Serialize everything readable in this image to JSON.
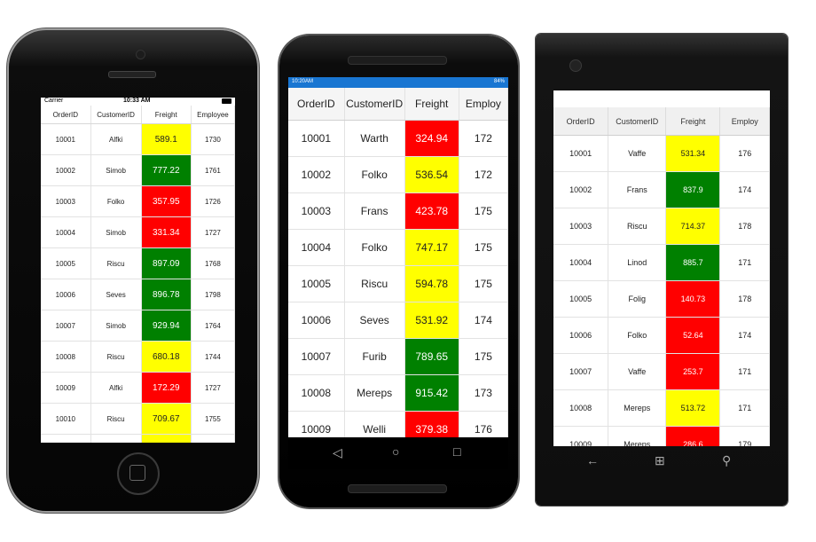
{
  "columns": [
    "OrderID",
    "CustomerID",
    "Freight",
    "Employee"
  ],
  "android_columns": [
    "OrderID",
    "CustomerID",
    "Freight",
    "Employ"
  ],
  "wp_columns": [
    "OrderID",
    "CustomerID",
    "Freight",
    "Employ"
  ],
  "ios": {
    "status": {
      "carrier": "Carrier",
      "time": "10:33 AM"
    },
    "rows": [
      {
        "order_id": "10001",
        "customer": "Alfki",
        "freight": "589.1",
        "employee": "1730",
        "color": "yellow"
      },
      {
        "order_id": "10002",
        "customer": "Simob",
        "freight": "777.22",
        "employee": "1761",
        "color": "green"
      },
      {
        "order_id": "10003",
        "customer": "Folko",
        "freight": "357.95",
        "employee": "1726",
        "color": "red"
      },
      {
        "order_id": "10004",
        "customer": "Simob",
        "freight": "331.34",
        "employee": "1727",
        "color": "red"
      },
      {
        "order_id": "10005",
        "customer": "Riscu",
        "freight": "897.09",
        "employee": "1768",
        "color": "green"
      },
      {
        "order_id": "10006",
        "customer": "Seves",
        "freight": "896.78",
        "employee": "1798",
        "color": "green"
      },
      {
        "order_id": "10007",
        "customer": "Simob",
        "freight": "929.94",
        "employee": "1764",
        "color": "green"
      },
      {
        "order_id": "10008",
        "customer": "Riscu",
        "freight": "680.18",
        "employee": "1744",
        "color": "yellow"
      },
      {
        "order_id": "10009",
        "customer": "Alfki",
        "freight": "172.29",
        "employee": "1727",
        "color": "red"
      },
      {
        "order_id": "10010",
        "customer": "Riscu",
        "freight": "709.67",
        "employee": "1755",
        "color": "yellow"
      },
      {
        "order_id": "",
        "customer": "",
        "freight": "",
        "employee": "",
        "color": "yellow"
      }
    ]
  },
  "android": {
    "status": {
      "time": "10:20AM",
      "battery": "84%"
    },
    "rows": [
      {
        "order_id": "10001",
        "customer": "Warth",
        "freight": "324.94",
        "employee": "172",
        "color": "red"
      },
      {
        "order_id": "10002",
        "customer": "Folko",
        "freight": "536.54",
        "employee": "172",
        "color": "yellow"
      },
      {
        "order_id": "10003",
        "customer": "Frans",
        "freight": "423.78",
        "employee": "175",
        "color": "red"
      },
      {
        "order_id": "10004",
        "customer": "Folko",
        "freight": "747.17",
        "employee": "175",
        "color": "yellow"
      },
      {
        "order_id": "10005",
        "customer": "Riscu",
        "freight": "594.78",
        "employee": "175",
        "color": "yellow"
      },
      {
        "order_id": "10006",
        "customer": "Seves",
        "freight": "531.92",
        "employee": "174",
        "color": "yellow"
      },
      {
        "order_id": "10007",
        "customer": "Furib",
        "freight": "789.65",
        "employee": "175",
        "color": "green"
      },
      {
        "order_id": "10008",
        "customer": "Mereps",
        "freight": "915.42",
        "employee": "173",
        "color": "green"
      },
      {
        "order_id": "10009",
        "customer": "Welli",
        "freight": "379.38",
        "employee": "176",
        "color": "red"
      }
    ]
  },
  "wp": {
    "rows": [
      {
        "order_id": "10001",
        "customer": "Vaffe",
        "freight": "531.34",
        "employee": "176",
        "color": "yellow"
      },
      {
        "order_id": "10002",
        "customer": "Frans",
        "freight": "837.9",
        "employee": "174",
        "color": "green"
      },
      {
        "order_id": "10003",
        "customer": "Riscu",
        "freight": "714.37",
        "employee": "178",
        "color": "yellow"
      },
      {
        "order_id": "10004",
        "customer": "Linod",
        "freight": "885.7",
        "employee": "171",
        "color": "green"
      },
      {
        "order_id": "10005",
        "customer": "Folig",
        "freight": "140.73",
        "employee": "178",
        "color": "red"
      },
      {
        "order_id": "10006",
        "customer": "Folko",
        "freight": "52.64",
        "employee": "174",
        "color": "red"
      },
      {
        "order_id": "10007",
        "customer": "Vaffe",
        "freight": "253.7",
        "employee": "171",
        "color": "red"
      },
      {
        "order_id": "10008",
        "customer": "Mereps",
        "freight": "513.72",
        "employee": "171",
        "color": "yellow"
      },
      {
        "order_id": "10009",
        "customer": "Mereps",
        "freight": "286.6",
        "employee": "179",
        "color": "red"
      }
    ]
  },
  "icons": {
    "android_nav": [
      "back-icon",
      "home-icon",
      "recents-icon"
    ],
    "wp_nav": [
      "back-arrow-icon",
      "windows-logo-icon",
      "search-icon"
    ]
  },
  "colors": {
    "yellow": "#ffff00",
    "green": "#008000",
    "red": "#ff0000",
    "android_status": "#1976d2"
  }
}
